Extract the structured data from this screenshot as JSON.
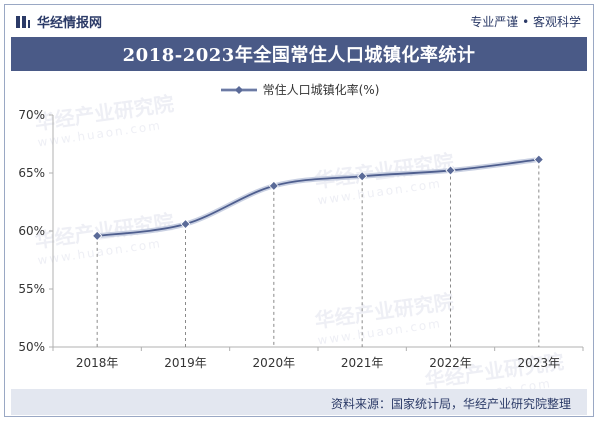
{
  "header": {
    "brand_name": "华经情报网",
    "tagline": "专业严谨 • 客观科学",
    "title": "2018-2023年全国常住人口城镇化率统计"
  },
  "watermark": {
    "text": "华经产业研究院",
    "url": "www.huaon.com"
  },
  "footer": {
    "source": "资料来源：国家统计局，华经产业研究院整理"
  },
  "colors": {
    "title_bg": "#4a5a87",
    "line": "#4e5e8e",
    "marker": "#5a6a98",
    "footer_bg": "#e3e7f0"
  },
  "chart_data": {
    "type": "line",
    "title": "2018-2023年全国常住人口城镇化率统计",
    "categories": [
      "2018年",
      "2019年",
      "2020年",
      "2021年",
      "2022年",
      "2023年"
    ],
    "series": [
      {
        "name": "常住人口城镇化率(%)",
        "values": [
          59.58,
          60.6,
          63.89,
          64.72,
          65.22,
          66.16
        ]
      }
    ],
    "ylim": [
      50,
      70
    ],
    "yticks": [
      "50%",
      "55%",
      "60%",
      "65%",
      "70%"
    ],
    "ytick_values": [
      50,
      55,
      60,
      65,
      70
    ],
    "legend": "top-center",
    "grid": false,
    "drop_lines": true
  }
}
